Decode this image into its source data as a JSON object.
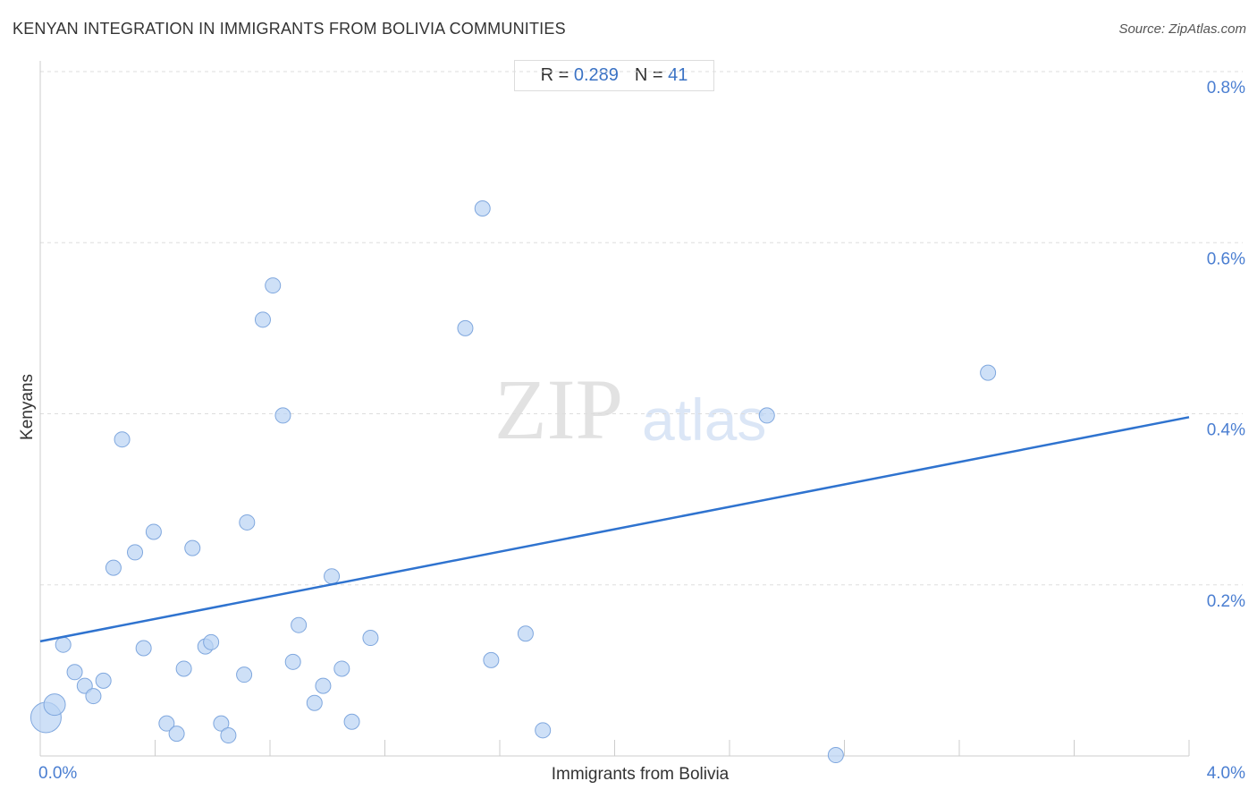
{
  "header": {
    "title": "KENYAN INTEGRATION IN IMMIGRANTS FROM BOLIVIA COMMUNITIES",
    "source": "Source: ZipAtlas.com"
  },
  "stats": {
    "r_label": "R =",
    "r_value": "0.289",
    "n_label": "N =",
    "n_value": "41"
  },
  "watermark": {
    "zip": "ZIP",
    "atlas": "atlas"
  },
  "colors": {
    "point_fill": "#b9d3f3",
    "point_stroke": "#7fa7de",
    "trend_line": "#2f73cf",
    "tick_label": "#4a7ed1",
    "grid": "#dddddd"
  },
  "chart_data": {
    "type": "scatter",
    "title": "KENYAN INTEGRATION IN IMMIGRANTS FROM BOLIVIA COMMUNITIES",
    "xlabel": "Immigrants from Bolivia",
    "ylabel": "Kenyans",
    "xlim": [
      0,
      4.0
    ],
    "ylim": [
      0,
      0.8
    ],
    "x_tick_labels": [
      {
        "value": 0.0,
        "label": "0.0%"
      },
      {
        "value": 4.0,
        "label": "4.0%"
      }
    ],
    "y_tick_labels": [
      {
        "value": 0.2,
        "label": "0.2%"
      },
      {
        "value": 0.4,
        "label": "0.4%"
      },
      {
        "value": 0.6,
        "label": "0.6%"
      },
      {
        "value": 0.8,
        "label": "0.8%"
      }
    ],
    "x_minor_ticks": [
      0.4,
      0.8,
      1.2,
      1.6,
      2.0,
      2.4,
      2.8,
      3.2,
      3.6,
      4.0
    ],
    "grid": true,
    "grid_axis": "y",
    "trendline": {
      "x": [
        0.0,
        4.0
      ],
      "y": [
        0.134,
        0.396
      ]
    },
    "points": [
      {
        "x": 0.02,
        "y": 0.045,
        "size": "large"
      },
      {
        "x": 0.05,
        "y": 0.06,
        "size": "medium"
      },
      {
        "x": 0.08,
        "y": 0.13
      },
      {
        "x": 0.12,
        "y": 0.098
      },
      {
        "x": 0.155,
        "y": 0.082
      },
      {
        "x": 0.185,
        "y": 0.07
      },
      {
        "x": 0.22,
        "y": 0.088
      },
      {
        "x": 0.255,
        "y": 0.22
      },
      {
        "x": 0.285,
        "y": 0.37
      },
      {
        "x": 0.33,
        "y": 0.238
      },
      {
        "x": 0.36,
        "y": 0.126
      },
      {
        "x": 0.395,
        "y": 0.262
      },
      {
        "x": 0.44,
        "y": 0.038
      },
      {
        "x": 0.475,
        "y": 0.026
      },
      {
        "x": 0.5,
        "y": 0.102
      },
      {
        "x": 0.53,
        "y": 0.243
      },
      {
        "x": 0.575,
        "y": 0.128
      },
      {
        "x": 0.595,
        "y": 0.133
      },
      {
        "x": 0.63,
        "y": 0.038
      },
      {
        "x": 0.655,
        "y": 0.024
      },
      {
        "x": 0.71,
        "y": 0.095
      },
      {
        "x": 0.72,
        "y": 0.273
      },
      {
        "x": 0.775,
        "y": 0.51
      },
      {
        "x": 0.81,
        "y": 0.55
      },
      {
        "x": 0.845,
        "y": 0.398
      },
      {
        "x": 0.88,
        "y": 0.11
      },
      {
        "x": 0.9,
        "y": 0.153
      },
      {
        "x": 0.955,
        "y": 0.062
      },
      {
        "x": 0.985,
        "y": 0.082
      },
      {
        "x": 1.015,
        "y": 0.21
      },
      {
        "x": 1.05,
        "y": 0.102
      },
      {
        "x": 1.085,
        "y": 0.04
      },
      {
        "x": 1.15,
        "y": 0.138
      },
      {
        "x": 1.48,
        "y": 0.5
      },
      {
        "x": 1.54,
        "y": 0.64
      },
      {
        "x": 1.57,
        "y": 0.112
      },
      {
        "x": 1.69,
        "y": 0.143
      },
      {
        "x": 1.75,
        "y": 0.03
      },
      {
        "x": 2.53,
        "y": 0.398
      },
      {
        "x": 2.77,
        "y": 0.001
      },
      {
        "x": 3.3,
        "y": 0.448
      }
    ]
  }
}
